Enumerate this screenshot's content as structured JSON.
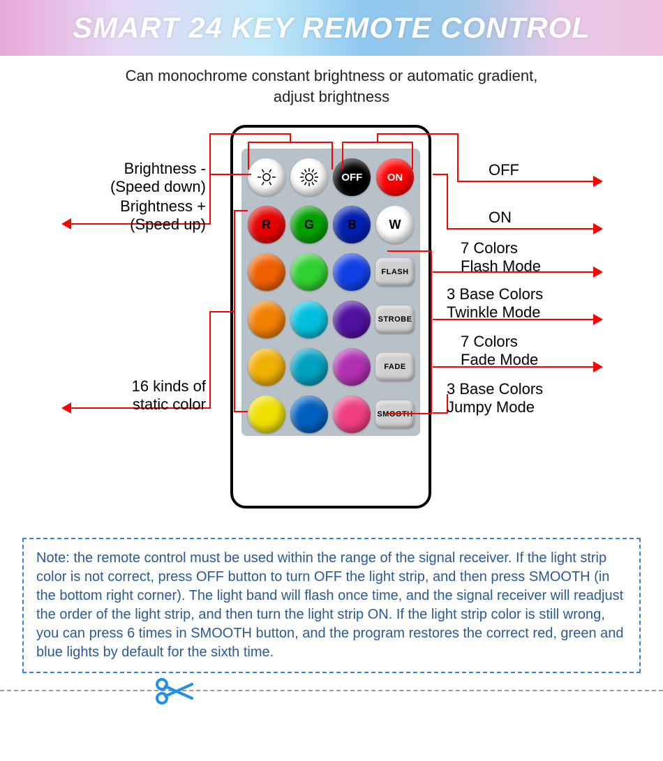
{
  "header": {
    "title": "SMART 24 KEY REMOTE CONTROL",
    "subtitle_l1": "Can monochrome constant brightness or automatic gradient,",
    "subtitle_l2": "adjust brightness"
  },
  "labels": {
    "left1_l1": "Brightness -",
    "left1_l2": "(Speed down)",
    "left2_l1": "Brightness +",
    "left2_l2": "(Speed up)",
    "left3_l1": "16 kinds of",
    "left3_l2": "static color",
    "r_off": "OFF",
    "r_on": "ON",
    "r_flash_l1": "7 Colors",
    "r_flash_l2": "Flash Mode",
    "r_strobe_l1": "3 Base Colors",
    "r_strobe_l2": "Twinkle Mode",
    "r_fade_l1": "7 Colors",
    "r_fade_l2": "Fade Mode",
    "r_smooth_l1": "3 Base Colors",
    "r_smooth_l2": "Jumpy Mode"
  },
  "buttons": {
    "row1": [
      {
        "bg": "#ffffff",
        "kind": "icon-bright-down"
      },
      {
        "bg": "#ffffff",
        "kind": "icon-bright-up"
      },
      {
        "bg": "#000000",
        "text": "OFF",
        "fg": "#ffffff",
        "fs": 15
      },
      {
        "bg": "#ff0000",
        "text": "ON",
        "fg": "#ffffff",
        "fs": 15
      }
    ],
    "row2": [
      {
        "bg": "#e60000",
        "text": "R"
      },
      {
        "bg": "#00a000",
        "text": "G"
      },
      {
        "bg": "#0020b0",
        "text": "B"
      },
      {
        "bg": "#ffffff",
        "text": "W"
      }
    ],
    "row3": [
      {
        "bg": "#f06000"
      },
      {
        "bg": "#30d030"
      },
      {
        "bg": "#1040e8"
      },
      {
        "bg": "#d0d0d0",
        "text": "FLASH",
        "pill": true
      }
    ],
    "row4": [
      {
        "bg": "#f08000"
      },
      {
        "bg": "#00c0e0"
      },
      {
        "bg": "#5010a0"
      },
      {
        "bg": "#d0d0d0",
        "text": "STROBE",
        "pill": true
      }
    ],
    "row5": [
      {
        "bg": "#f0b000"
      },
      {
        "bg": "#00a0c0"
      },
      {
        "bg": "#b030b0"
      },
      {
        "bg": "#d0d0d0",
        "text": "FADE",
        "pill": true
      }
    ],
    "row6": [
      {
        "bg": "#f0e000"
      },
      {
        "bg": "#0060c0"
      },
      {
        "bg": "#f04080"
      },
      {
        "bg": "#d0d0d0",
        "text": "SMOOTH",
        "pill": true
      }
    ]
  },
  "note": "Note: the remote control must be used within the range of the signal receiver. If the light strip color is not correct, press OFF button to turn OFF the light strip, and then press SMOOTH (in the bottom right corner). The light band will flash once time, and the signal receiver will readjust the order of the light strip, and then turn the light strip ON. If the light strip color is still wrong, you can press 6 times in SMOOTH button, and the program restores the correct red, green and blue lights by default for the sixth time.",
  "colors": {
    "line": "#ff0000",
    "note_border": "#3a7fd6",
    "note_text": "#2a5a96",
    "scissors": "#2090e8"
  }
}
